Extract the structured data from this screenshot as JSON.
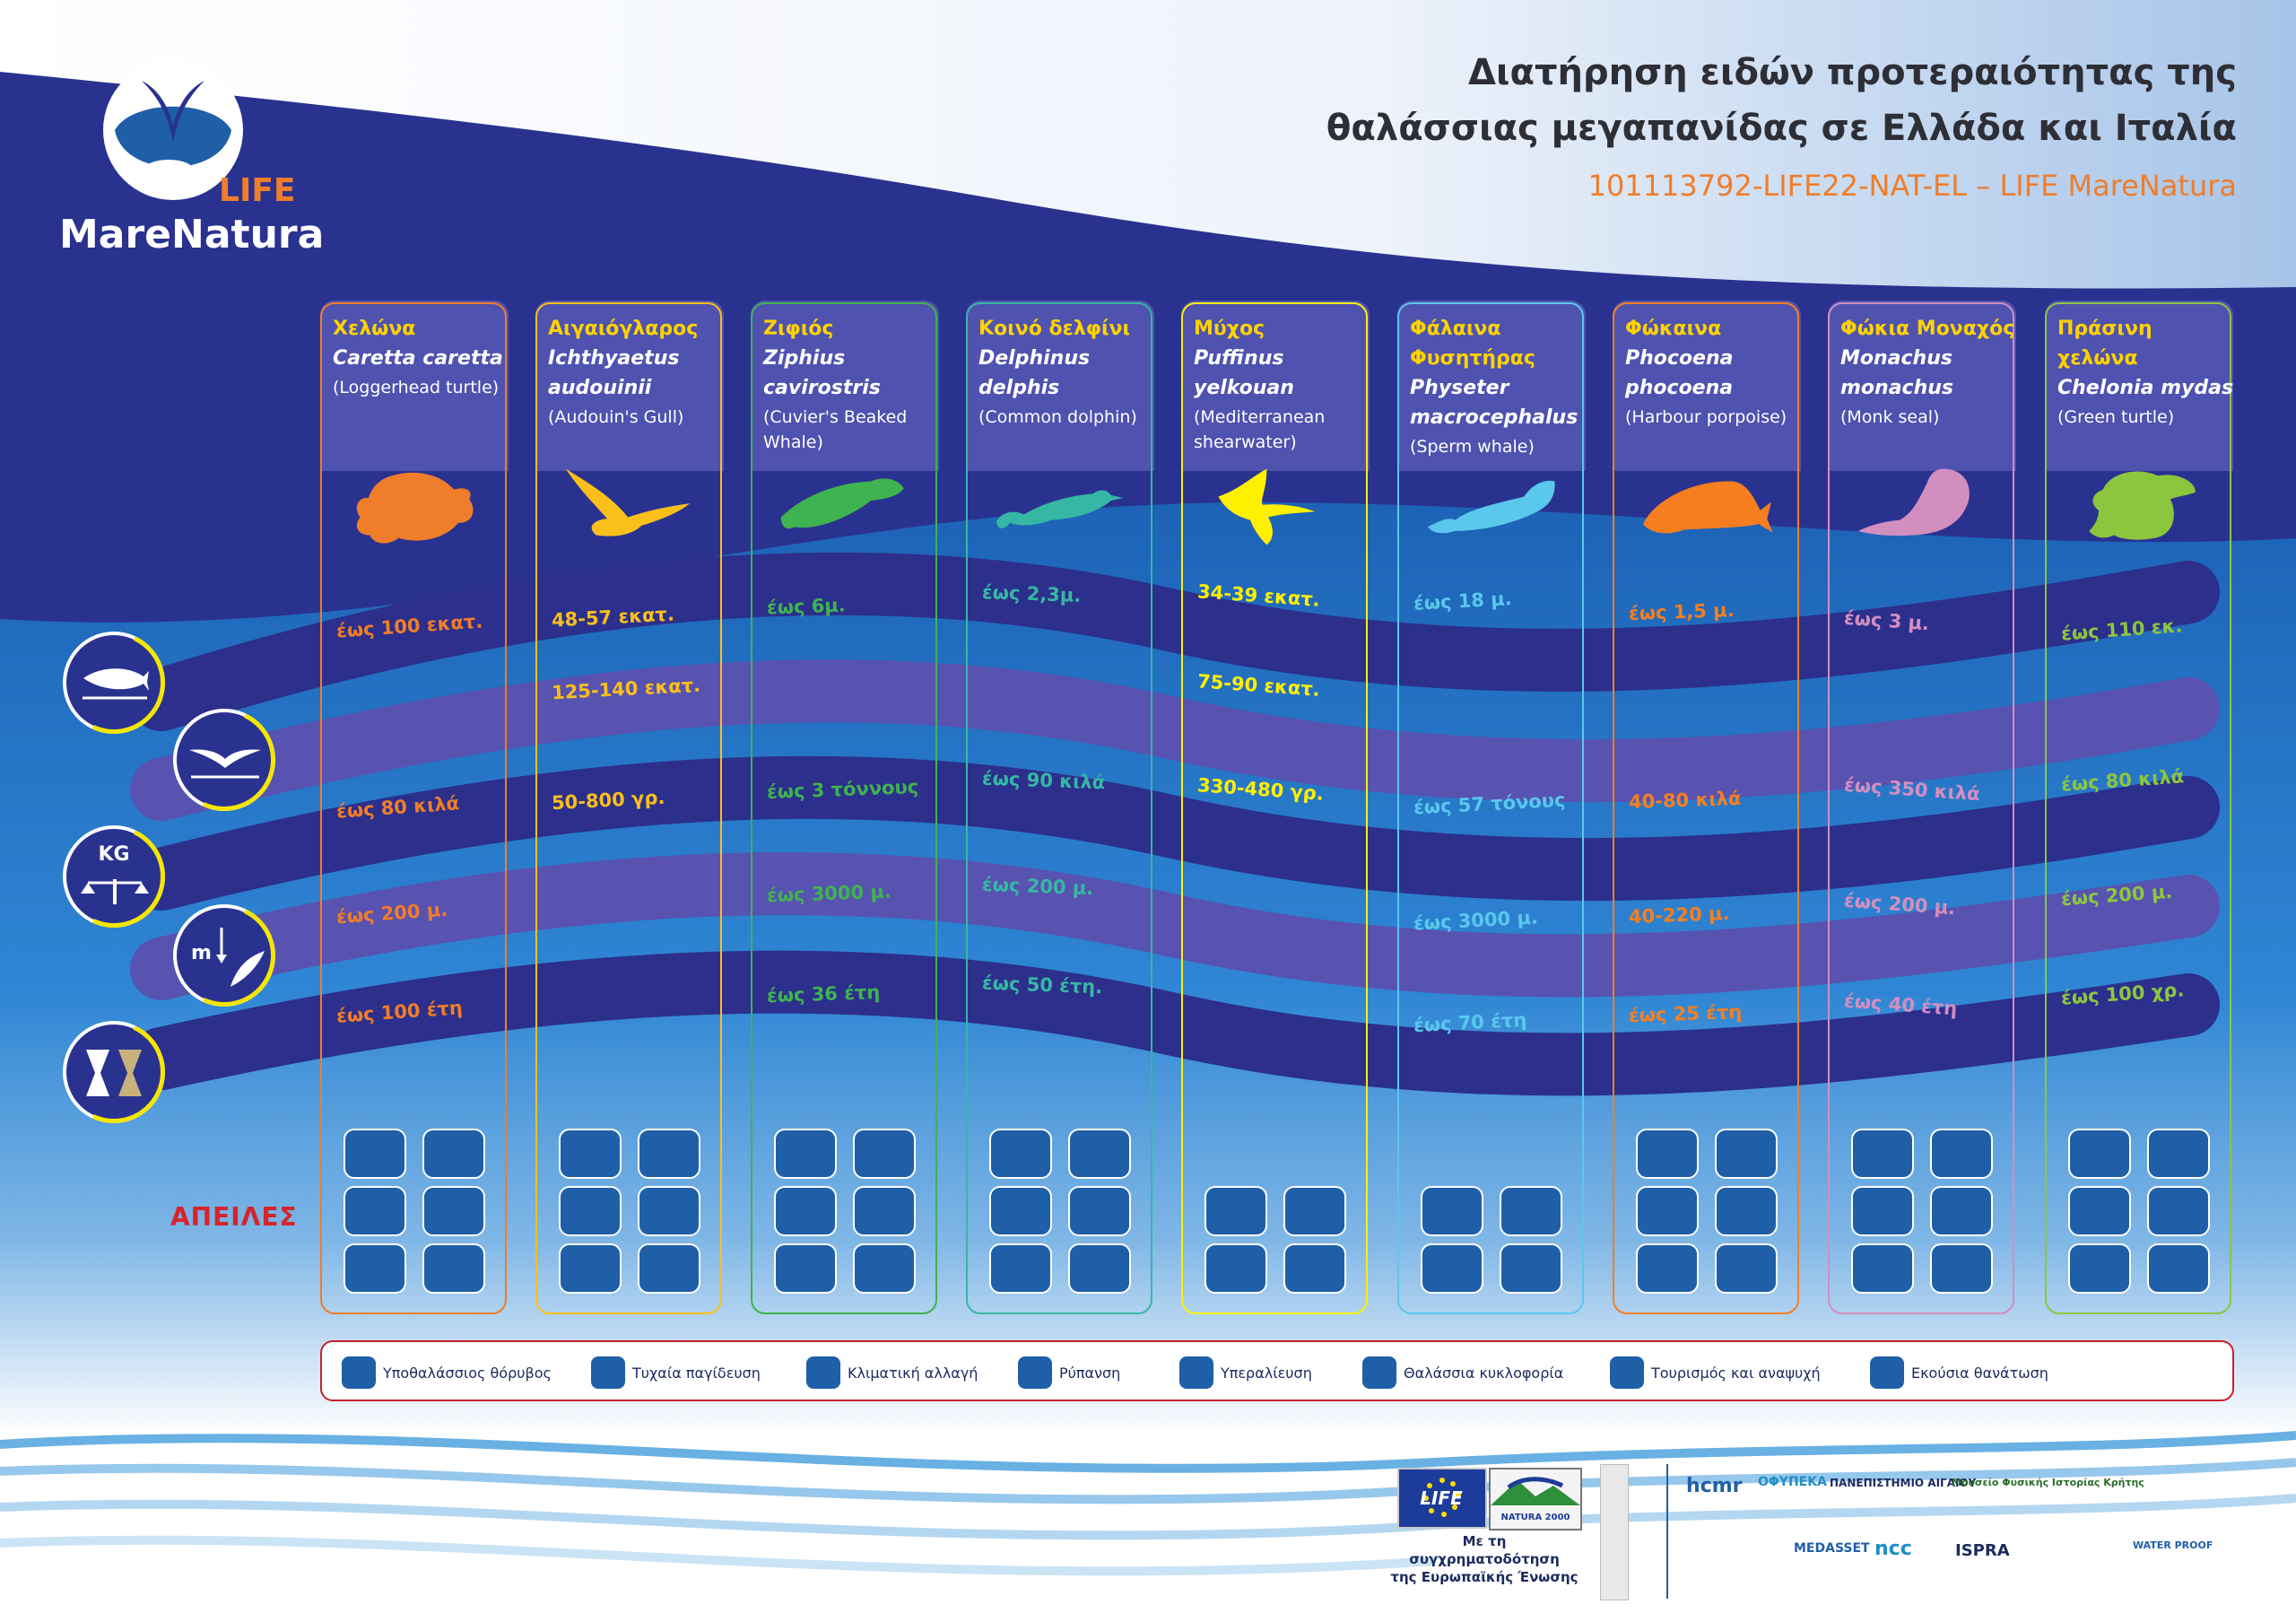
{
  "logo": {
    "top_text": "LIFE",
    "name": "MareNatura"
  },
  "title": {
    "line1": "Διατήρηση ειδών προτεραιότητας της",
    "line2": "θαλάσσιας μεγαπανίδας σε Ελλάδα και Ιταλία",
    "project": "101113792-LIFE22-NAT-EL – LIFE MareNatura"
  },
  "columns": [
    {
      "greek": "Χελώνα",
      "sci": "Caretta caretta",
      "common": "(Loggerhead turtle)",
      "color": "#f07d2a",
      "silhouette": "turtle-icon",
      "values": [
        "έως 100 εκατ.",
        "",
        "έως 80 κιλά",
        "έως 200 μ.",
        "έως 100 έτη"
      ]
    },
    {
      "greek": "Αιγαιόγλαρος",
      "sci": "Ichthyaetus audouinii",
      "common": "(Audouin's Gull)",
      "color": "#fbbf1a",
      "silhouette": "gull-icon",
      "values": [
        "48-57 εκατ.",
        "125-140 εκατ.",
        "50-800 γρ.",
        "",
        ""
      ]
    },
    {
      "greek": "Ζιφιός",
      "sci": "Ziphius cavirostris",
      "common": "(Cuvier's Beaked Whale)",
      "color": "#3fb34f",
      "silhouette": "beaked-whale-icon",
      "values": [
        "έως 6μ.",
        "",
        "έως 3 τόννους",
        "έως 3000 μ.",
        "έως 36 έτη"
      ]
    },
    {
      "greek": "Κοινό δελφίνι",
      "sci": "Delphinus delphis",
      "common": "(Common dolphin)",
      "color": "#36b7a4",
      "silhouette": "dolphin-icon",
      "values": [
        "έως 2,3μ.",
        "",
        "έως 90 κιλά",
        "έως 200 μ.",
        "έως 50 έτη."
      ]
    },
    {
      "greek": "Μύχος",
      "sci": "Puffinus yelkouan",
      "common": "(Mediterranean shearwater)",
      "color": "#fff000",
      "silhouette": "shearwater-icon",
      "values": [
        "34-39 εκατ.",
        "75-90 εκατ.",
        "330-480 γρ.",
        "",
        ""
      ]
    },
    {
      "greek": "Φάλαινα Φυσητήρας",
      "sci": "Physeter macrocephalus",
      "common": "(Sperm whale)",
      "color": "#5ac8ec",
      "silhouette": "sperm-whale-icon",
      "values": [
        "έως 18 μ.",
        "",
        "έως 57 τόνους",
        "έως 3000 μ.",
        "έως 70 έτη"
      ]
    },
    {
      "greek": "Φώκαινα",
      "sci": "Phocoena phocoena",
      "common": "(Harbour porpoise)",
      "color": "#f57f20",
      "silhouette": "porpoise-icon",
      "values": [
        "έως 1,5 μ.",
        "",
        "40-80 κιλά",
        "40-220 μ.",
        "έως 25 έτη"
      ]
    },
    {
      "greek": "Φώκια Μοναχός",
      "sci": "Monachus monachus",
      "common": "(Monk seal)",
      "color": "#d38ec0",
      "silhouette": "seal-icon",
      "values": [
        "έως 3 μ.",
        "",
        "έως 350 κιλά",
        "έως 200 μ.",
        "έως 40 έτη"
      ]
    },
    {
      "greek": "Πράσινη χελώνα",
      "sci": "Chelonia mydas",
      "common": "(Green turtle)",
      "color": "#8cc63f",
      "silhouette": "green-turtle-icon",
      "values": [
        "έως 110 εκ.",
        "",
        "έως 80 κιλά",
        "έως 200 μ.",
        "έως 100 χρ."
      ]
    }
  ],
  "side_icons": [
    {
      "name": "length-icon"
    },
    {
      "name": "wingspan-icon"
    },
    {
      "name": "weight-icon",
      "label": "KG"
    },
    {
      "name": "depth-icon",
      "label": "m"
    },
    {
      "name": "lifespan-icon"
    }
  ],
  "threats_label": "ΑΠΕΙΛΕΣ",
  "legend": [
    {
      "icon": "noise-icon",
      "label": "Υποθαλάσσιος θόρυβος"
    },
    {
      "icon": "bycatch-icon",
      "label": "Τυχαία παγίδευση"
    },
    {
      "icon": "climate-icon",
      "label": "Κλιματική αλλαγή"
    },
    {
      "icon": "pollution-icon",
      "label": "Ρύπανση"
    },
    {
      "icon": "overfishing-icon",
      "label": "Υπεραλίευση"
    },
    {
      "icon": "traffic-icon",
      "label": "Θαλάσσια κυκλοφορία"
    },
    {
      "icon": "tourism-icon",
      "label": "Τουρισμός και αναψυχή"
    },
    {
      "icon": "killing-icon",
      "label": "Εκούσια θανάτωση"
    }
  ],
  "funding": {
    "line1": "Με τη συγχρηματοδότηση",
    "line2": "της Ευρωπαϊκής Ένωσης"
  },
  "partners": [
    "LIFE",
    "NATURA 2000",
    "hcmr",
    "ΟΦΥΠΕΚΑ",
    "ΠΑΝΕΠΙΣΤΗΜΙΟ ΑΙΓΑΙΟΥ",
    "Μουσείο Φυσικής Ιστορίας Κρήτης",
    "MEDASSET",
    "ncc",
    "ISPRA",
    "WATER PROOF"
  ],
  "colors": {
    "navy": "#2a3290",
    "band_dark": "#2c2f8c",
    "band_light": "#5852b0",
    "ocean": "#1f72c0"
  }
}
